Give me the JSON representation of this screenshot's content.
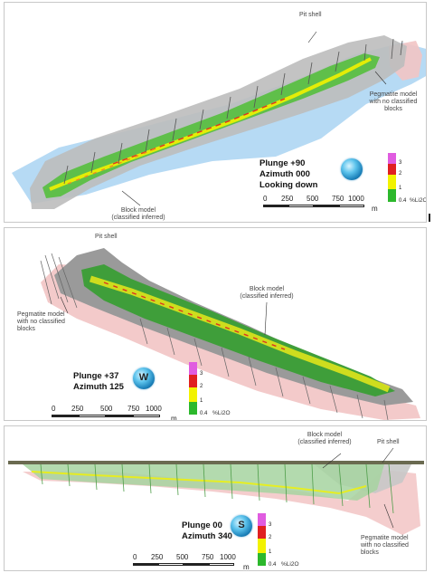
{
  "panels": [
    {
      "id": "plan",
      "annotations": {
        "pit_shell": "Pit shell",
        "pegmatite": [
          "Pegmatite model",
          "with no classified",
          "blocks"
        ],
        "block_model": [
          "Block model",
          "(classified inferred)"
        ]
      },
      "view": {
        "plunge": "Plunge +90",
        "azimuth": "Azimuth 000",
        "extra": "Looking down"
      },
      "compass_letter": "",
      "scale_ticks": [
        "0",
        "250",
        "500",
        "750",
        "1000"
      ],
      "scale_unit": "m",
      "legend_levels": [
        "3",
        "2",
        "1",
        "0.4"
      ],
      "legend_unit": "%Li2O"
    },
    {
      "id": "oblique",
      "annotations": {
        "pit_shell": "Pit shell",
        "pegmatite": [
          "Pegmatite model",
          "with no classified",
          "blocks"
        ],
        "block_model": [
          "Block model",
          "(classified inferred)"
        ]
      },
      "view": {
        "plunge": "Plunge +37",
        "azimuth": "Azimuth 125"
      },
      "compass_letter": "W",
      "scale_ticks": [
        "0",
        "250",
        "500",
        "750",
        "1000"
      ],
      "scale_unit": "m",
      "legend_levels": [
        "3",
        "2",
        "1",
        "0.4"
      ],
      "legend_unit": "%Li2O"
    },
    {
      "id": "section",
      "annotations": {
        "pit_shell": "Pit shell",
        "pegmatite": [
          "Pegmatite model",
          "with no classified",
          "blocks"
        ],
        "block_model": [
          "Block model",
          "(classified inferred)"
        ]
      },
      "view": {
        "plunge": "Plunge 00",
        "azimuth": "Azimuth 340"
      },
      "compass_letter": "S",
      "scale_ticks": [
        "0",
        "250",
        "500",
        "750",
        "1000"
      ],
      "scale_unit": "m",
      "legend_levels": [
        "3",
        "2",
        "1",
        "0.4"
      ],
      "legend_unit": "%Li2O"
    }
  ],
  "colors": {
    "grade_3": "#e05ce0",
    "grade_2": "#e02020",
    "grade_1": "#f2f200",
    "grade_04": "#2cb82c",
    "pit_shell": "#bdbdbd",
    "pegmatite_blue": "#a9d3f2",
    "pegmatite_pink": "#f2c4c4"
  }
}
